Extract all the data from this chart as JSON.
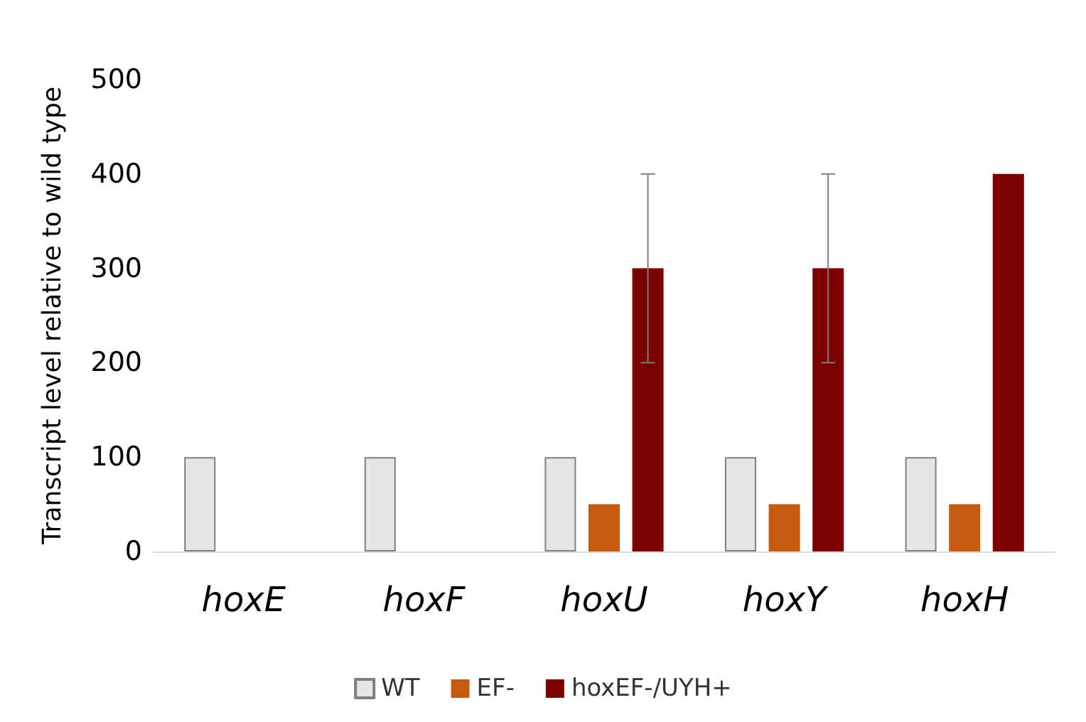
{
  "chart_data": {
    "type": "bar",
    "ylabel": "Transcript level relative to wild type",
    "categories": [
      "hoxE",
      "hoxF",
      "hoxU",
      "hoxY",
      "hoxH"
    ],
    "series": [
      {
        "name": "WT",
        "color": "#e7e6e6",
        "values": [
          100,
          100,
          100,
          100,
          100
        ]
      },
      {
        "name": "EF-",
        "color": "#c55a11",
        "values": [
          0,
          0,
          50,
          50,
          50
        ]
      },
      {
        "name": "hoxEF-/UYH+",
        "color": "#7b0000",
        "values": [
          0,
          0,
          300,
          300,
          400
        ],
        "errors": [
          null,
          null,
          100,
          100,
          null
        ]
      }
    ],
    "ylim": [
      0,
      500
    ],
    "yticks": [
      0,
      100,
      200,
      300,
      400,
      500
    ],
    "grid": false,
    "legend": "bottom"
  }
}
